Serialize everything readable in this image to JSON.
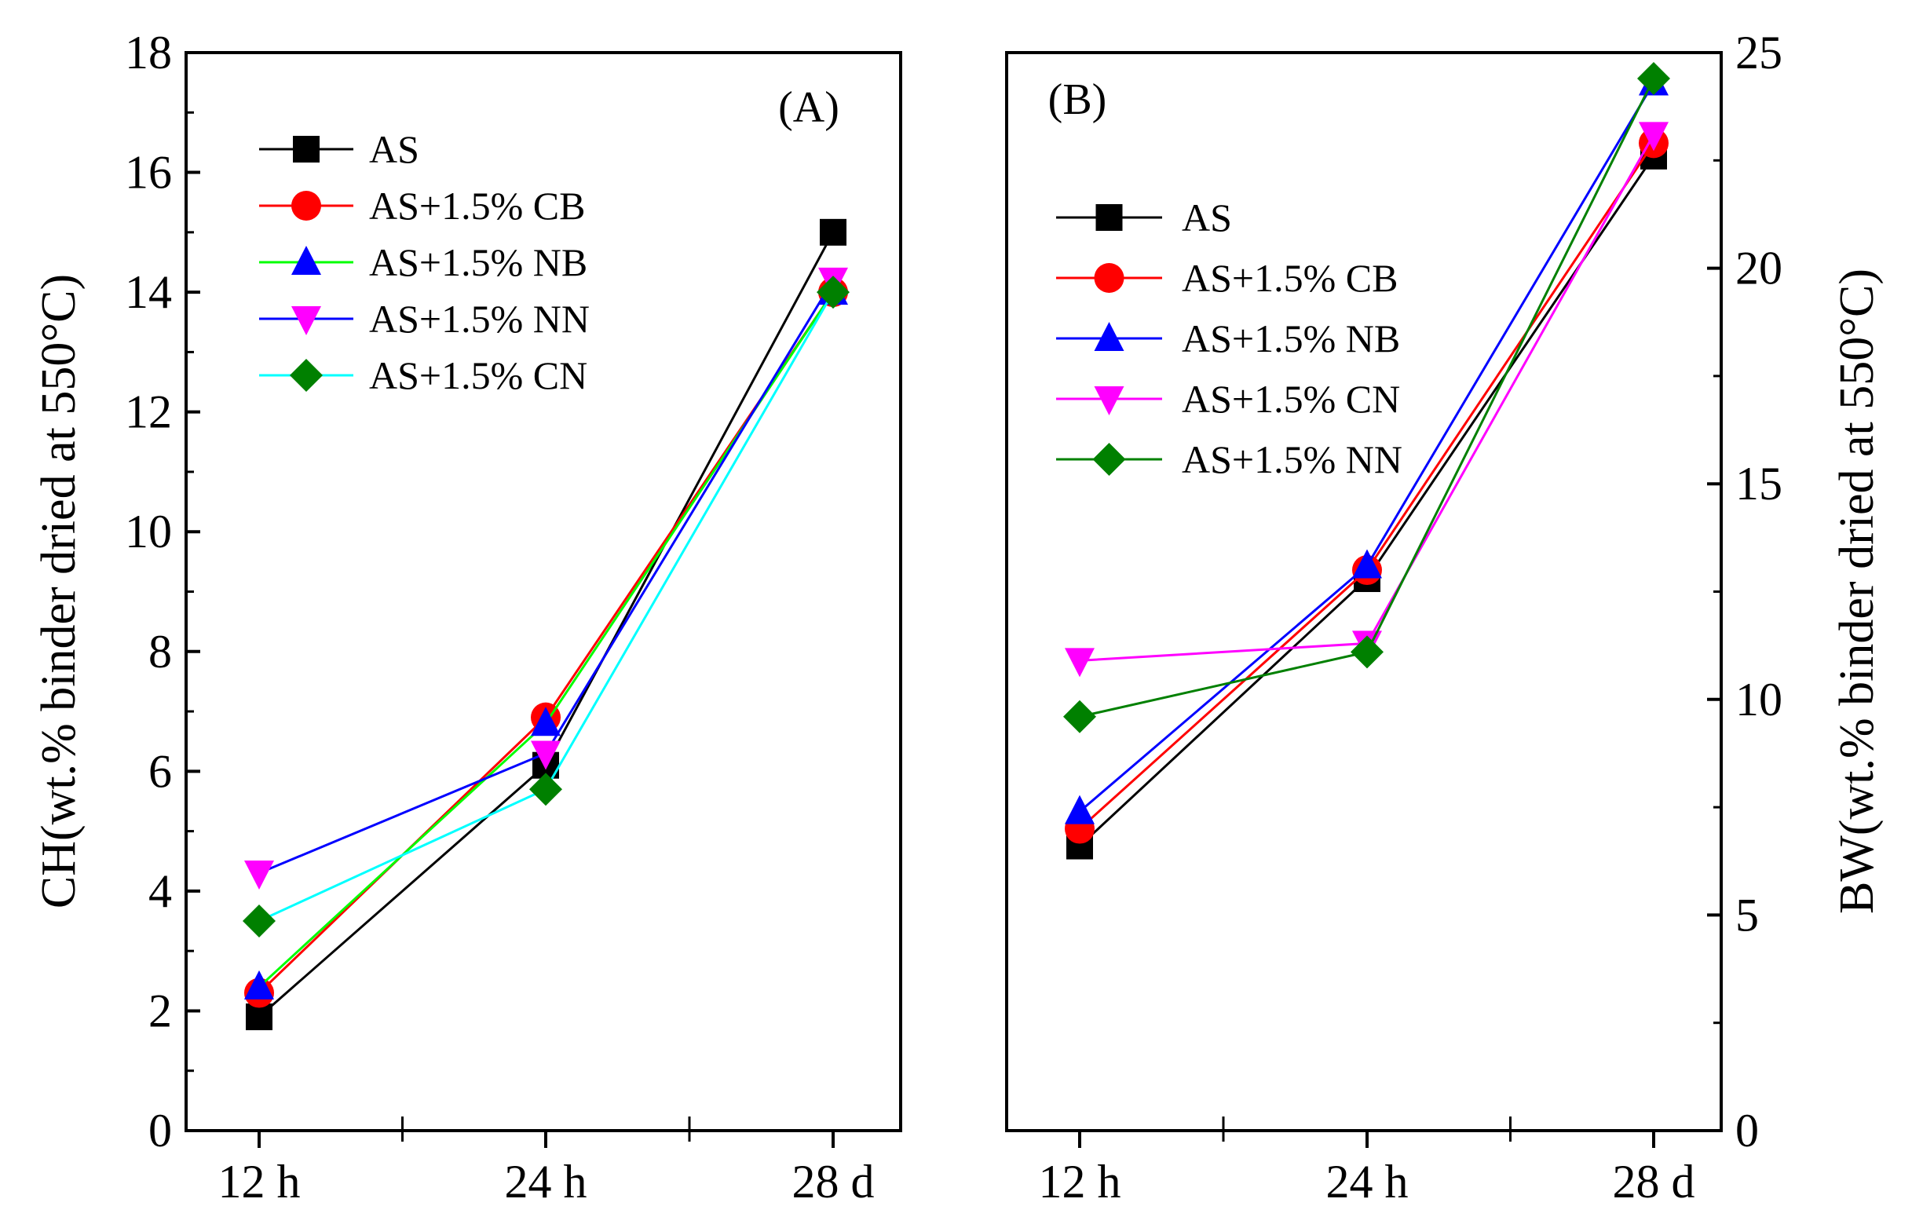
{
  "chart_data": [
    {
      "type": "line",
      "panel_label": "(A)",
      "ylabel": "CH(wt.% binder dried at 550°C)",
      "ylabel_side": "left",
      "categories": [
        "12 h",
        "24 h",
        "28 d"
      ],
      "ylim": [
        0,
        18
      ],
      "yticks": [
        "0",
        "2",
        "4",
        "6",
        "8",
        "10",
        "12",
        "14",
        "16",
        "18"
      ],
      "legend_position": "top-left",
      "series": [
        {
          "name": "AS",
          "color": "#000000",
          "marker": "square",
          "values": [
            1.9,
            6.1,
            15.0
          ]
        },
        {
          "name": "AS+1.5% CB",
          "color": "#ff0000",
          "marker": "circle",
          "values": [
            2.3,
            6.9,
            14.0
          ]
        },
        {
          "name": "AS+1.5% NB",
          "color": "#00ff00",
          "marker": "triangle-up",
          "marker_color": "#0000ff",
          "values": [
            2.4,
            6.8,
            14.0
          ]
        },
        {
          "name": "AS+1.5% NN",
          "color": "#0000ff",
          "marker": "triangle-down",
          "marker_color": "#ff00ff",
          "values": [
            4.3,
            6.3,
            14.2
          ]
        },
        {
          "name": "AS+1.5% CN",
          "color": "#00ffff",
          "marker": "diamond",
          "marker_color": "#008000",
          "values": [
            3.5,
            5.7,
            14.0
          ]
        }
      ]
    },
    {
      "type": "line",
      "panel_label": "(B)",
      "ylabel": "BW(wt.% binder dried at 550°C)",
      "ylabel_side": "right",
      "categories": [
        "12 h",
        "24 h",
        "28 d"
      ],
      "ylim": [
        0,
        25
      ],
      "yticks": [
        "0",
        "5",
        "10",
        "15",
        "20",
        "25"
      ],
      "legend_position": "center-left",
      "series": [
        {
          "name": "AS",
          "color": "#000000",
          "marker": "square",
          "values": [
            6.6,
            12.8,
            22.6
          ]
        },
        {
          "name": "AS+1.5% CB",
          "color": "#ff0000",
          "marker": "circle",
          "values": [
            7.0,
            13.0,
            22.9
          ]
        },
        {
          "name": "AS+1.5% NB",
          "color": "#0000ff",
          "marker": "triangle-up",
          "values": [
            7.4,
            13.1,
            24.3
          ]
        },
        {
          "name": "AS+1.5% CN",
          "color": "#ff00ff",
          "marker": "triangle-down",
          "values": [
            10.9,
            11.3,
            23.1
          ]
        },
        {
          "name": "AS+1.5% NN",
          "color": "#008000",
          "marker": "diamond",
          "values": [
            9.6,
            11.1,
            24.4
          ]
        }
      ]
    }
  ]
}
